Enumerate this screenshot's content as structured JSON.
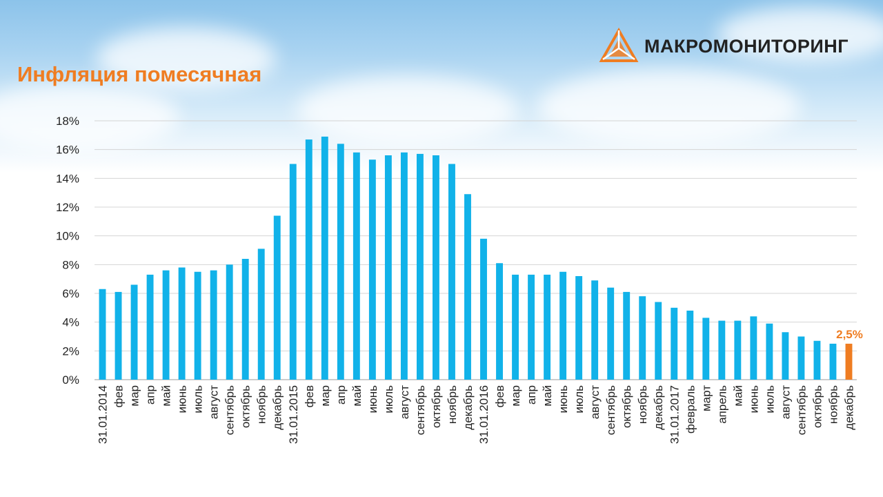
{
  "header": {
    "title": "Инфляция помесячная",
    "logo_text": "МАКРОМОНИТОРИНГ"
  },
  "colors": {
    "bar": "#11b2e9",
    "highlight": "#ef7d22",
    "title": "#ef7d22",
    "grid": "#d4d4d4"
  },
  "chart_data": {
    "type": "bar",
    "title": "",
    "xlabel": "",
    "ylabel": "",
    "ylim": [
      0,
      18
    ],
    "y_ticks": [
      "0%",
      "2%",
      "4%",
      "6%",
      "8%",
      "10%",
      "12%",
      "14%",
      "16%",
      "18%"
    ],
    "grid": true,
    "categories": [
      "31.01.2014",
      "фев",
      "мар",
      "апр",
      "май",
      "июнь",
      "июль",
      "август",
      "сентябрь",
      "октябрь",
      "ноябрь",
      "декабрь",
      "31.01.2015",
      "фев",
      "мар",
      "апр",
      "май",
      "июнь",
      "июль",
      "август",
      "сентябрь",
      "октябрь",
      "ноябрь",
      "декабрь",
      "31.01.2016",
      "фев",
      "мар",
      "апр",
      "май",
      "июнь",
      "июль",
      "август",
      "сентябрь",
      "октябрь",
      "ноябрь",
      "декабрь",
      "31.01.2017",
      "февраль",
      "март",
      "апрель",
      "май",
      "июнь",
      "июль",
      "август",
      "сентябрь",
      "октябрь",
      "ноябрь",
      "декабрь"
    ],
    "values": [
      6.3,
      6.1,
      6.6,
      7.3,
      7.6,
      7.8,
      7.5,
      7.6,
      8.0,
      8.4,
      9.1,
      11.4,
      15.0,
      16.7,
      16.9,
      16.4,
      15.8,
      15.3,
      15.6,
      15.8,
      15.7,
      15.6,
      15.0,
      12.9,
      9.8,
      8.1,
      7.3,
      7.3,
      7.3,
      7.5,
      7.2,
      6.9,
      6.4,
      6.1,
      5.8,
      5.4,
      5.0,
      4.8,
      4.3,
      4.1,
      4.1,
      4.4,
      3.9,
      3.3,
      3.0,
      2.7,
      2.5,
      2.5
    ],
    "highlight_index": 47,
    "data_labels": [
      {
        "index": 47,
        "text": "2,5%"
      }
    ]
  }
}
